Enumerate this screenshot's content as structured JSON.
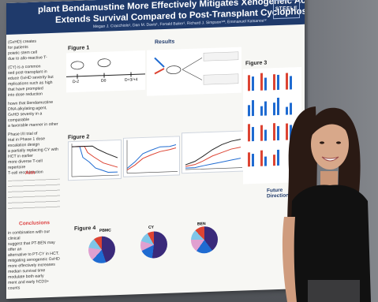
{
  "poster": {
    "title_line1": "plant Bendamustine More Effectively Mitigates Xenogeneic Acute GvHD and",
    "title_line2": "Extends Survival Compared to Post-Transplant Cyclophosphamide",
    "authors": "Megan J. Cracchiolo¹, Dan M. Davis¹, Fortald Baker¹, Richard J. Simpson¹²³, Emmanuel Katsanos¹²",
    "logo_text": "STEELE",
    "section_results": "Results",
    "figure1": "Figure 1",
    "figure2": "Figure 2",
    "figure3": "Figure 3",
    "figure4": "Figure 4",
    "section_aim": "Aim",
    "section_conclusions": "Conclusions",
    "section_future": "Future Directions",
    "timeline_labels": [
      "D-2",
      "D0",
      "D+3/+4"
    ],
    "left_text": [
      "(GvHD) creates",
      "for patients",
      "poietic stem cell",
      "due to allo-reactive T-",
      "(CY) is a common",
      "sed post-transplant in",
      "educe GvHD severity but",
      "mplications such as high",
      "that have prompted",
      "into dose reduction",
      "hown that Bendamustine",
      "DNA alkylating agent,",
      "GvHD severity in a comparable",
      "a favorable manner in other",
      "Phase I/II trial of",
      "trial in Phase 1 dose escalation design",
      "a partially replacing CY with",
      "HCT in earlier",
      "more diverse T-cell repertoire",
      "T-cell reconstitution"
    ],
    "conclusions_text": [
      "in combination with our clinical",
      "suggest that PT-BEN may offer an",
      "alternative to PT-CY in HCT.",
      "mitigating xenogeneic GvHD",
      "more effectively increases median survival time",
      "modulate both early",
      "ment and early hCD3+ counts"
    ],
    "pie_groups": [
      "PBMC",
      "CY",
      "BEN"
    ]
  },
  "chart_data": {
    "type": "bar",
    "title": "Figure 3",
    "categories": [
      "",
      "",
      "",
      "",
      "",
      "",
      ""
    ],
    "series": [],
    "legend": "right"
  }
}
